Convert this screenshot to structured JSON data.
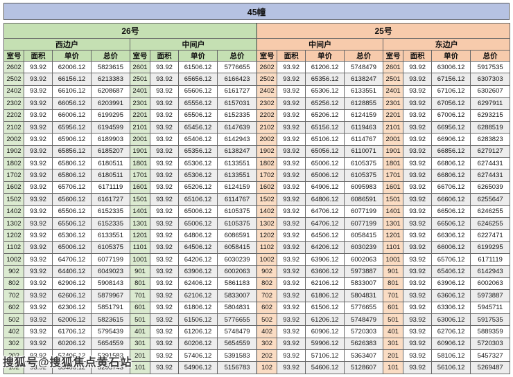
{
  "title": "45幢",
  "watermark": "搜狐号@搜狐焦点黄石站",
  "columns": [
    "室号",
    "面积",
    "单价",
    "总价"
  ],
  "colors": {
    "title_bg": "#b6c2e2",
    "green_header": "#c5e0b3",
    "green_room": "#dbead0",
    "orange_header": "#f7cbac",
    "orange_room": "#fadcc3",
    "alt_row": "#ededed",
    "border": "#666666"
  },
  "buildings": [
    {
      "name": "26号",
      "theme": "green",
      "units": [
        {
          "name": "西边户",
          "rows": [
            [
              "2602",
              "93.92",
              "62006.12",
              "5823615"
            ],
            [
              "2502",
              "93.92",
              "66156.12",
              "6213383"
            ],
            [
              "2402",
              "93.92",
              "66106.12",
              "6208687"
            ],
            [
              "2302",
              "93.92",
              "66056.12",
              "6203991"
            ],
            [
              "2202",
              "93.92",
              "66006.12",
              "6199295"
            ],
            [
              "2102",
              "93.92",
              "65956.12",
              "6194599"
            ],
            [
              "2002",
              "93.92",
              "65906.12",
              "6189903"
            ],
            [
              "1902",
              "93.92",
              "65856.12",
              "6185207"
            ],
            [
              "1802",
              "93.92",
              "65806.12",
              "6180511"
            ],
            [
              "1702",
              "93.92",
              "65806.12",
              "6180511"
            ],
            [
              "1602",
              "93.92",
              "65706.12",
              "6171119"
            ],
            [
              "1502",
              "93.92",
              "65606.12",
              "6161727"
            ],
            [
              "1402",
              "93.92",
              "65506.12",
              "6152335"
            ],
            [
              "1302",
              "93.92",
              "65506.12",
              "6152335"
            ],
            [
              "1202",
              "93.92",
              "65306.12",
              "6133551"
            ],
            [
              "1102",
              "93.92",
              "65006.12",
              "6105375"
            ],
            [
              "1002",
              "93.92",
              "64706.12",
              "6077199"
            ],
            [
              "902",
              "93.92",
              "64406.12",
              "6049023"
            ],
            [
              "802",
              "93.92",
              "62906.12",
              "5908143"
            ],
            [
              "702",
              "93.92",
              "62606.12",
              "5879967"
            ],
            [
              "602",
              "93.92",
              "62306.12",
              "5851791"
            ],
            [
              "502",
              "93.92",
              "62006.12",
              "5823615"
            ],
            [
              "402",
              "93.92",
              "61706.12",
              "5795439"
            ],
            [
              "302",
              "93.92",
              "60206.12",
              "5654559"
            ],
            [
              "202",
              "93.92",
              "57406.12",
              "5391583"
            ],
            [
              "102",
              "93.92",
              "55406.12",
              "5203743"
            ]
          ]
        },
        {
          "name": "中间户",
          "rows": [
            [
              "2601",
              "93.92",
              "61506.12",
              "5776655"
            ],
            [
              "2501",
              "93.92",
              "65656.12",
              "6166423"
            ],
            [
              "2401",
              "93.92",
              "65606.12",
              "6161727"
            ],
            [
              "2301",
              "93.92",
              "65556.12",
              "6157031"
            ],
            [
              "2201",
              "93.92",
              "65506.12",
              "6152335"
            ],
            [
              "2101",
              "93.92",
              "65456.12",
              "6147639"
            ],
            [
              "2001",
              "93.92",
              "65406.12",
              "6142943"
            ],
            [
              "1901",
              "93.92",
              "65356.12",
              "6138247"
            ],
            [
              "1801",
              "93.92",
              "65306.12",
              "6133551"
            ],
            [
              "1701",
              "93.92",
              "65306.12",
              "6133551"
            ],
            [
              "1601",
              "93.92",
              "65206.12",
              "6124159"
            ],
            [
              "1501",
              "93.92",
              "65106.12",
              "6114767"
            ],
            [
              "1401",
              "93.92",
              "65006.12",
              "6105375"
            ],
            [
              "1301",
              "93.92",
              "65006.12",
              "6105375"
            ],
            [
              "1201",
              "93.92",
              "64806.12",
              "6086591"
            ],
            [
              "1101",
              "93.92",
              "64506.12",
              "6058415"
            ],
            [
              "1001",
              "93.92",
              "64206.12",
              "6030239"
            ],
            [
              "901",
              "93.92",
              "63906.12",
              "6002063"
            ],
            [
              "801",
              "93.92",
              "62406.12",
              "5861183"
            ],
            [
              "701",
              "93.92",
              "62106.12",
              "5833007"
            ],
            [
              "601",
              "93.92",
              "61806.12",
              "5804831"
            ],
            [
              "501",
              "93.92",
              "61506.12",
              "5776655"
            ],
            [
              "401",
              "93.92",
              "61206.12",
              "5748479"
            ],
            [
              "301",
              "93.92",
              "60206.12",
              "5654559"
            ],
            [
              "201",
              "93.92",
              "57406.12",
              "5391583"
            ],
            [
              "101",
              "93.92",
              "54906.12",
              "5156783"
            ]
          ]
        }
      ]
    },
    {
      "name": "25号",
      "theme": "orange",
      "units": [
        {
          "name": "中间户",
          "rows": [
            [
              "2602",
              "93.92",
              "61206.12",
              "5748479"
            ],
            [
              "2502",
              "93.92",
              "65356.12",
              "6138247"
            ],
            [
              "2402",
              "93.92",
              "65306.12",
              "6133551"
            ],
            [
              "2302",
              "93.92",
              "65256.12",
              "6128855"
            ],
            [
              "2202",
              "93.92",
              "65206.12",
              "6124159"
            ],
            [
              "2102",
              "93.92",
              "65156.12",
              "6119463"
            ],
            [
              "2002",
              "93.92",
              "65106.12",
              "6114767"
            ],
            [
              "1902",
              "93.92",
              "65056.12",
              "6110071"
            ],
            [
              "1802",
              "93.92",
              "65006.12",
              "6105375"
            ],
            [
              "1702",
              "93.92",
              "65006.12",
              "6105375"
            ],
            [
              "1602",
              "93.92",
              "64906.12",
              "6095983"
            ],
            [
              "1502",
              "93.92",
              "64806.12",
              "6086591"
            ],
            [
              "1402",
              "93.92",
              "64706.12",
              "6077199"
            ],
            [
              "1302",
              "93.92",
              "64706.12",
              "6077199"
            ],
            [
              "1202",
              "93.92",
              "64506.12",
              "6058415"
            ],
            [
              "1102",
              "93.92",
              "64206.12",
              "6030239"
            ],
            [
              "1002",
              "93.92",
              "63906.12",
              "6002063"
            ],
            [
              "902",
              "93.92",
              "63606.12",
              "5973887"
            ],
            [
              "802",
              "93.92",
              "62106.12",
              "5833007"
            ],
            [
              "702",
              "93.92",
              "61806.12",
              "5804831"
            ],
            [
              "602",
              "93.92",
              "61506.12",
              "5776655"
            ],
            [
              "502",
              "93.92",
              "61206.12",
              "5748479"
            ],
            [
              "402",
              "93.92",
              "60906.12",
              "5720303"
            ],
            [
              "302",
              "93.92",
              "59906.12",
              "5626383"
            ],
            [
              "202",
              "93.92",
              "57106.12",
              "5363407"
            ],
            [
              "102",
              "93.92",
              "54606.12",
              "5128607"
            ]
          ]
        },
        {
          "name": "东边户",
          "rows": [
            [
              "2601",
              "93.92",
              "63006.12",
              "5917535"
            ],
            [
              "2501",
              "93.92",
              "67156.12",
              "6307303"
            ],
            [
              "2401",
              "93.92",
              "67106.12",
              "6302607"
            ],
            [
              "2301",
              "93.92",
              "67056.12",
              "6297911"
            ],
            [
              "2201",
              "93.92",
              "67006.12",
              "6293215"
            ],
            [
              "2101",
              "93.92",
              "66956.12",
              "6288519"
            ],
            [
              "2001",
              "93.92",
              "66906.12",
              "6283823"
            ],
            [
              "1901",
              "93.92",
              "66856.12",
              "6279127"
            ],
            [
              "1801",
              "93.92",
              "66806.12",
              "6274431"
            ],
            [
              "1701",
              "93.92",
              "66806.12",
              "6274431"
            ],
            [
              "1601",
              "93.92",
              "66706.12",
              "6265039"
            ],
            [
              "1501",
              "93.92",
              "66606.12",
              "6255647"
            ],
            [
              "1401",
              "93.92",
              "66506.12",
              "6246255"
            ],
            [
              "1301",
              "93.92",
              "66506.12",
              "6246255"
            ],
            [
              "1201",
              "93.92",
              "66306.12",
              "6227471"
            ],
            [
              "1101",
              "93.92",
              "66006.12",
              "6199295"
            ],
            [
              "1001",
              "93.92",
              "65706.12",
              "6171119"
            ],
            [
              "901",
              "93.92",
              "65406.12",
              "6142943"
            ],
            [
              "801",
              "93.92",
              "63906.12",
              "6002063"
            ],
            [
              "701",
              "93.92",
              "63606.12",
              "5973887"
            ],
            [
              "601",
              "93.92",
              "63306.12",
              "5945711"
            ],
            [
              "501",
              "93.92",
              "63006.12",
              "5917535"
            ],
            [
              "401",
              "93.92",
              "62706.12",
              "5889359"
            ],
            [
              "301",
              "93.92",
              "60906.12",
              "5720303"
            ],
            [
              "201",
              "93.92",
              "58106.12",
              "5457327"
            ],
            [
              "101",
              "93.92",
              "56106.12",
              "5269487"
            ]
          ]
        }
      ]
    }
  ]
}
